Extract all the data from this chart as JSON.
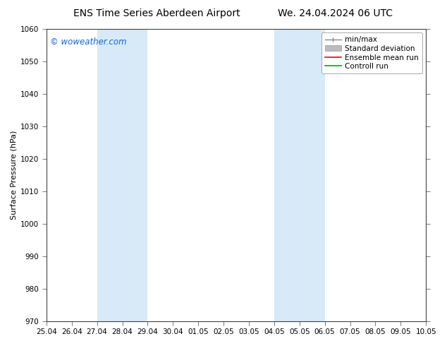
{
  "title_left": "ENS Time Series Aberdeen Airport",
  "title_right": "We. 24.04.2024 06 UTC",
  "ylabel": "Surface Pressure (hPa)",
  "ylim": [
    970,
    1060
  ],
  "yticks": [
    970,
    980,
    990,
    1000,
    1010,
    1020,
    1030,
    1040,
    1050,
    1060
  ],
  "xtick_labels": [
    "25.04",
    "26.04",
    "27.04",
    "28.04",
    "29.04",
    "30.04",
    "01.05",
    "02.05",
    "03.05",
    "04.05",
    "05.05",
    "06.05",
    "07.05",
    "08.05",
    "09.05",
    "10.05"
  ],
  "watermark": "© woweather.com",
  "watermark_color": "#1166cc",
  "bg_color": "#ffffff",
  "plot_bg_color": "#ffffff",
  "shaded_regions": [
    {
      "xstart": 2.0,
      "xend": 4.0,
      "color": "#d8eaf8"
    },
    {
      "xstart": 9.0,
      "xend": 11.0,
      "color": "#d8eaf8"
    }
  ],
  "legend_labels": [
    "min/max",
    "Standard deviation",
    "Ensemble mean run",
    "Controll run"
  ],
  "legend_colors": [
    "#888888",
    "#bbbbbb",
    "#ff0000",
    "#00aa00"
  ],
  "font_family": "DejaVu Sans",
  "title_fontsize": 10,
  "axis_label_fontsize": 8,
  "tick_fontsize": 7.5,
  "legend_fontsize": 7.5
}
